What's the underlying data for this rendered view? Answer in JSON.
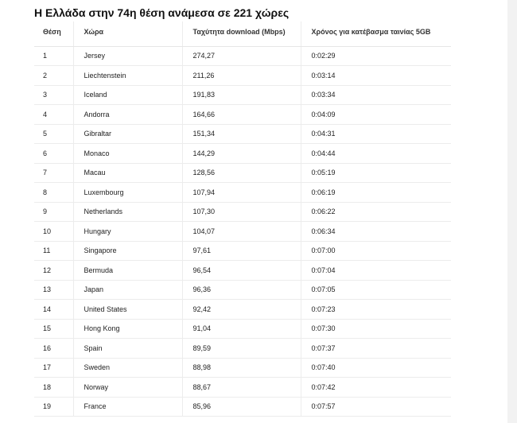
{
  "title": "Η Ελλάδα στην 74η θέση ανάμεσα σε 221 χώρες",
  "headers": {
    "rank": "Θέση",
    "country": "Χώρα",
    "speed": "Ταχύτητα download (Mbps)",
    "time": "Χρόνος για κατέβασμα ταινίας 5GB"
  },
  "rows": [
    {
      "rank": "1",
      "country": "Jersey",
      "speed": "274,27",
      "time": "0:02:29"
    },
    {
      "rank": "2",
      "country": "Liechtenstein",
      "speed": "211,26",
      "time": "0:03:14"
    },
    {
      "rank": "3",
      "country": "Iceland",
      "speed": "191,83",
      "time": "0:03:34"
    },
    {
      "rank": "4",
      "country": "Andorra",
      "speed": "164,66",
      "time": "0:04:09"
    },
    {
      "rank": "5",
      "country": "Gibraltar",
      "speed": "151,34",
      "time": "0:04:31"
    },
    {
      "rank": "6",
      "country": "Monaco",
      "speed": "144,29",
      "time": "0:04:44"
    },
    {
      "rank": "7",
      "country": "Macau",
      "speed": "128,56",
      "time": "0:05:19"
    },
    {
      "rank": "8",
      "country": "Luxembourg",
      "speed": "107,94",
      "time": "0:06:19"
    },
    {
      "rank": "9",
      "country": "Netherlands",
      "speed": "107,30",
      "time": "0:06:22"
    },
    {
      "rank": "10",
      "country": "Hungary",
      "speed": "104,07",
      "time": "0:06:34"
    },
    {
      "rank": "11",
      "country": "Singapore",
      "speed": "97,61",
      "time": "0:07:00"
    },
    {
      "rank": "12",
      "country": "Bermuda",
      "speed": "96,54",
      "time": "0:07:04"
    },
    {
      "rank": "13",
      "country": "Japan",
      "speed": "96,36",
      "time": "0:07:05"
    },
    {
      "rank": "14",
      "country": "United States",
      "speed": "92,42",
      "time": "0:07:23"
    },
    {
      "rank": "15",
      "country": "Hong Kong",
      "speed": "91,04",
      "time": "0:07:30"
    },
    {
      "rank": "16",
      "country": "Spain",
      "speed": "89,59",
      "time": "0:07:37"
    },
    {
      "rank": "17",
      "country": "Sweden",
      "speed": "88,98",
      "time": "0:07:40"
    },
    {
      "rank": "18",
      "country": "Norway",
      "speed": "88,67",
      "time": "0:07:42"
    },
    {
      "rank": "19",
      "country": "France",
      "speed": "85,96",
      "time": "0:07:57"
    }
  ]
}
